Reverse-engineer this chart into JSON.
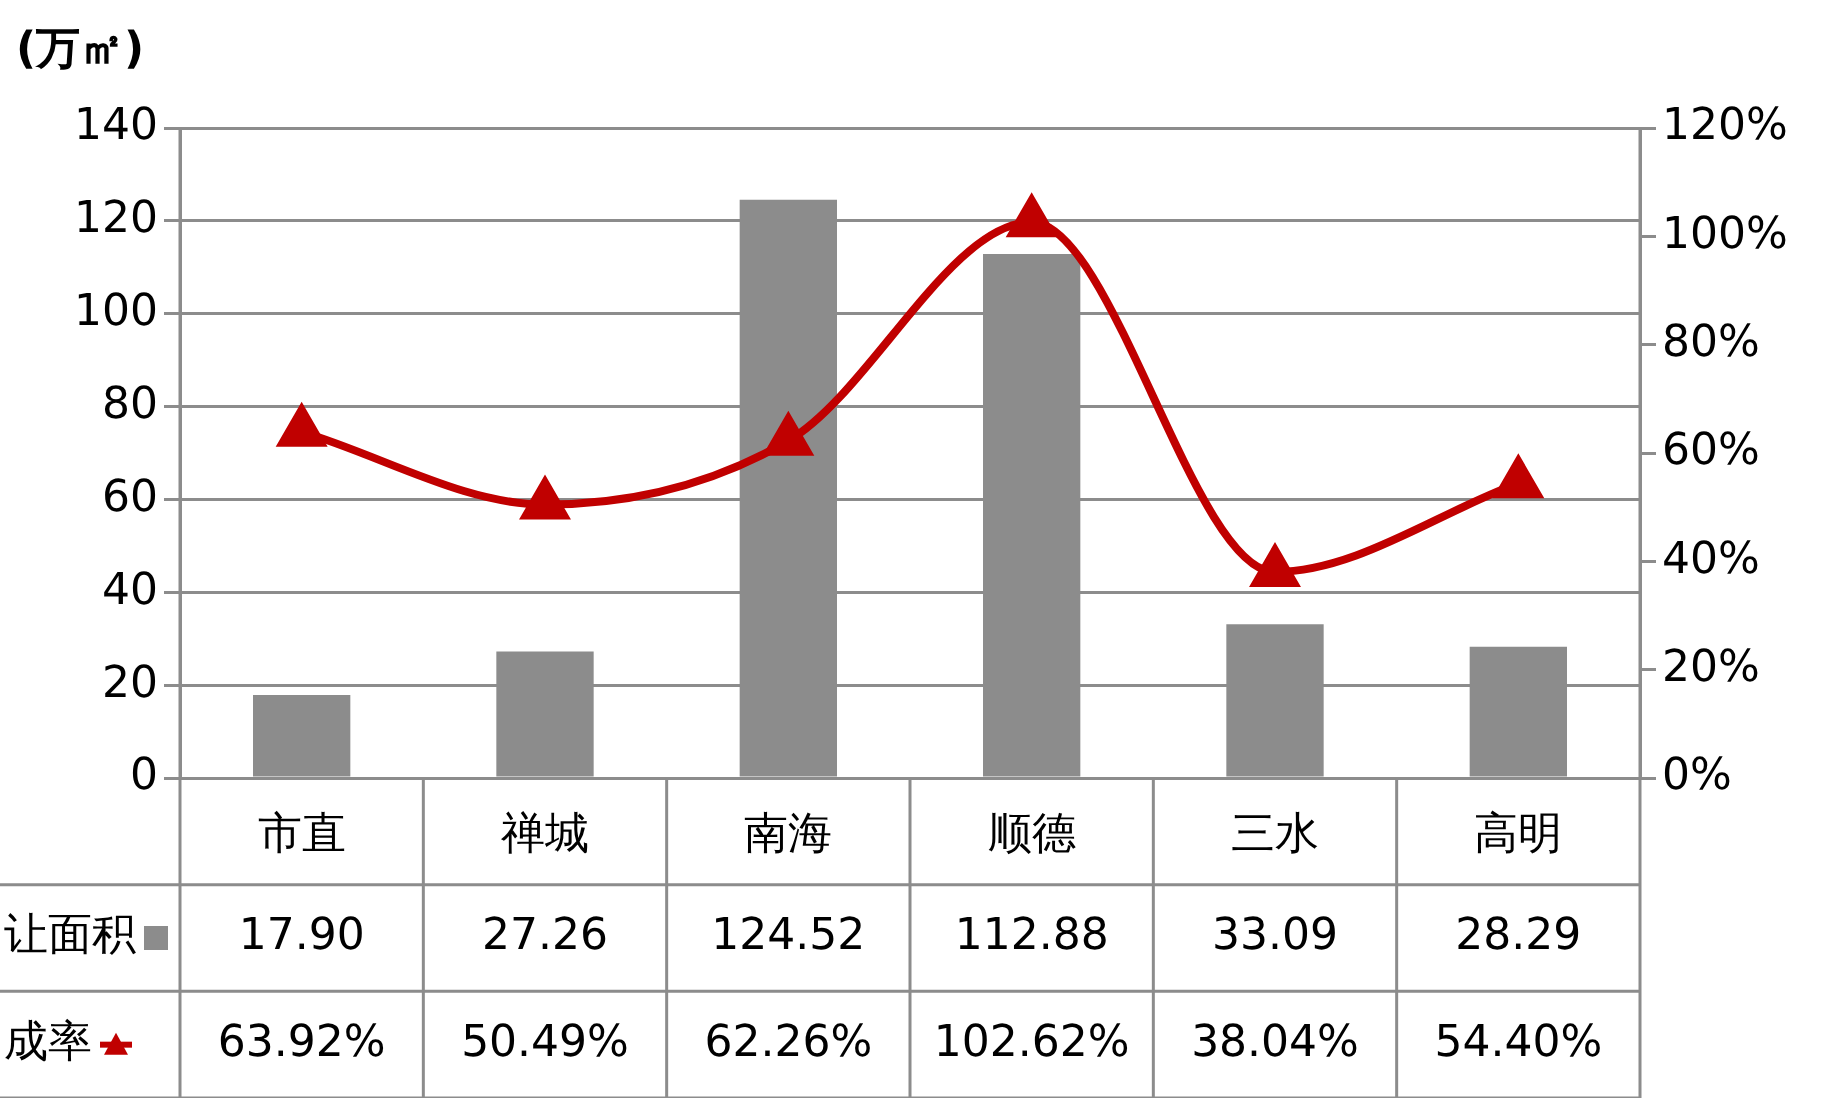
{
  "chart_data": {
    "type": "bar",
    "ylabel": "(万㎡)",
    "categories": [
      "市直",
      "禅城",
      "南海",
      "顺德",
      "三水",
      "高明"
    ],
    "series": [
      {
        "name": "让面积",
        "color": "#8c8c8c",
        "values": [
          17.9,
          27.26,
          124.52,
          112.88,
          33.09,
          28.29
        ],
        "value_labels": [
          "17.90",
          "27.26",
          "124.52",
          "112.88",
          "33.09",
          "28.29"
        ]
      },
      {
        "name": "成率",
        "type": "line",
        "axis": "y2",
        "color": "#c00000",
        "values": [
          63.92,
          50.49,
          62.26,
          102.62,
          38.04,
          54.4
        ],
        "value_labels": [
          "63.92%",
          "50.49%",
          "62.26%",
          "102.62%",
          "38.04%",
          "54.40%"
        ]
      }
    ],
    "ylim": [
      0,
      140
    ],
    "yticks": [
      0,
      20,
      40,
      60,
      80,
      100,
      120,
      140
    ],
    "y2lim": [
      0,
      120
    ],
    "y2ticks": [
      {
        "value": 0,
        "label": "0%"
      },
      {
        "value": 20,
        "label": "20%"
      },
      {
        "value": 40,
        "label": "40%"
      },
      {
        "value": 60,
        "label": "60%"
      },
      {
        "value": 80,
        "label": "80%"
      },
      {
        "value": 100,
        "label": "100%"
      },
      {
        "value": 120,
        "label": "120%"
      }
    ],
    "grid": "y",
    "legend": "bottom left",
    "marker": "triangle",
    "line_style": "solid"
  }
}
